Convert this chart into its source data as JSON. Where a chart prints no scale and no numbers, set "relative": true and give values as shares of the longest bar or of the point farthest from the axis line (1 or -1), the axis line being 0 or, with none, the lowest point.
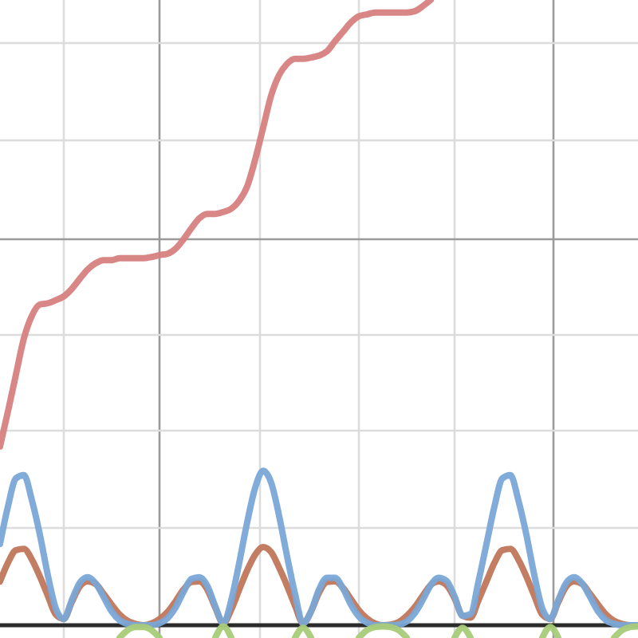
{
  "chart_data": {
    "type": "line",
    "relative": true,
    "grid": true,
    "line_style": "solid",
    "categories": [
      null,
      null,
      null,
      null,
      null,
      null,
      null,
      null,
      null,
      null,
      null,
      null,
      null,
      null,
      null,
      null,
      null,
      null,
      null,
      null,
      null,
      null,
      null,
      null,
      null,
      null,
      null,
      null,
      null,
      null,
      null,
      null,
      null,
      null,
      null,
      null,
      null,
      null,
      null,
      null,
      null,
      null,
      null,
      null,
      null,
      null,
      null,
      null,
      null,
      null,
      null,
      null,
      null,
      null,
      null,
      null,
      null,
      null,
      null,
      null,
      null,
      null,
      null,
      null,
      null,
      null,
      null,
      null,
      null,
      null,
      null,
      null,
      null,
      null,
      null,
      null,
      null,
      null,
      null,
      null,
      null
    ],
    "series": [
      {
        "color": "#d6817f",
        "values": [
          0.286,
          0.342,
          0.401,
          0.459,
          0.495,
          0.513,
          0.515,
          0.52,
          0.526,
          0.538,
          0.554,
          0.569,
          0.579,
          0.584,
          0.584,
          0.587,
          0.587,
          0.587,
          0.587,
          0.589,
          0.592,
          0.594,
          0.602,
          0.617,
          0.635,
          0.651,
          0.658,
          0.658,
          0.661,
          0.666,
          0.679,
          0.702,
          0.745,
          0.796,
          0.847,
          0.88,
          0.898,
          0.906,
          0.906,
          0.908,
          0.911,
          0.918,
          0.934,
          0.949,
          0.964,
          0.974,
          0.977,
          0.98,
          0.98,
          0.98,
          0.98,
          0.98,
          0.982,
          0.99,
          1,
          null,
          null,
          null,
          null,
          null,
          null,
          null,
          null,
          null,
          null,
          null,
          null,
          null,
          null,
          null,
          null,
          null,
          null,
          null,
          null,
          null,
          null,
          null,
          null,
          null,
          null
        ]
      },
      {
        "color": "#c0765a",
        "values": [
          0.07,
          0.1,
          0.12,
          0.122,
          0.105,
          0.078,
          0.047,
          0.017,
          0.01,
          0.037,
          0.062,
          0.07,
          0.066,
          0.05,
          0.033,
          0.017,
          0.007,
          0.002,
          0,
          0.003,
          0.01,
          0.021,
          0.038,
          0.057,
          0.069,
          0.07,
          0.057,
          0.028,
          0.003,
          0.025,
          0.057,
          0.088,
          0.113,
          0.125,
          0.117,
          0.092,
          0.063,
          0.031,
          0.003,
          0.022,
          0.052,
          0.069,
          0.07,
          0.06,
          0.042,
          0.024,
          0.011,
          0.003,
          0,
          0.001,
          0.005,
          0.015,
          0.029,
          0.047,
          0.064,
          0.07,
          0.064,
          0.043,
          0.015,
          0.012,
          0.04,
          0.07,
          0.1,
          0.12,
          0.122,
          0.105,
          0.078,
          0.047,
          0.017,
          0.01,
          0.037,
          0.062,
          0.07,
          0.066,
          0.05,
          0.033,
          0.017,
          0.007,
          0.002,
          0,
          0
        ]
      },
      {
        "color": "#7aa6d6",
        "values": [
          0.13,
          0.19,
          0.235,
          0.24,
          0.2,
          0.145,
          0.08,
          0.027,
          0.01,
          0.04,
          0.068,
          0.077,
          0.067,
          0.045,
          0.022,
          0.008,
          0.002,
          0,
          0,
          0,
          0.003,
          0.011,
          0.028,
          0.053,
          0.074,
          0.077,
          0.063,
          0.03,
          0.003,
          0.04,
          0.1,
          0.165,
          0.22,
          0.247,
          0.228,
          0.175,
          0.11,
          0.05,
          0.003,
          0.022,
          0.057,
          0.076,
          0.076,
          0.059,
          0.033,
          0.014,
          0.004,
          0,
          0,
          0,
          0.001,
          0.006,
          0.019,
          0.04,
          0.064,
          0.076,
          0.071,
          0.046,
          0.015,
          0.018,
          0.07,
          0.13,
          0.19,
          0.235,
          0.24,
          0.2,
          0.145,
          0.08,
          0.027,
          0.01,
          0.04,
          0.068,
          0.077,
          0.067,
          0.045,
          0.022,
          0.008,
          0.002,
          0,
          0,
          0
        ]
      },
      {
        "color": "#a8cc78",
        "values": [
          null,
          null,
          null,
          null,
          null,
          null,
          null,
          null,
          null,
          null,
          null,
          null,
          null,
          null,
          null,
          -0.02,
          -0.008,
          -0.003,
          -0.003,
          -0.008,
          -0.02,
          null,
          null,
          null,
          null,
          null,
          null,
          -0.02,
          -0.002,
          -0.02,
          null,
          null,
          null,
          null,
          null,
          null,
          null,
          -0.02,
          -0.004,
          -0.02,
          null,
          null,
          null,
          null,
          null,
          -0.02,
          -0.008,
          -0.003,
          -0.002,
          -0.003,
          -0.008,
          -0.02,
          null,
          null,
          null,
          null,
          null,
          -0.02,
          -0.004,
          -0.02,
          null,
          null,
          null,
          null,
          null,
          null,
          null,
          null,
          -0.02,
          -0.003,
          -0.02,
          null,
          null,
          null,
          null,
          null,
          null,
          -0.02,
          -0.008,
          -0.003,
          -0.002
        ]
      }
    ]
  }
}
